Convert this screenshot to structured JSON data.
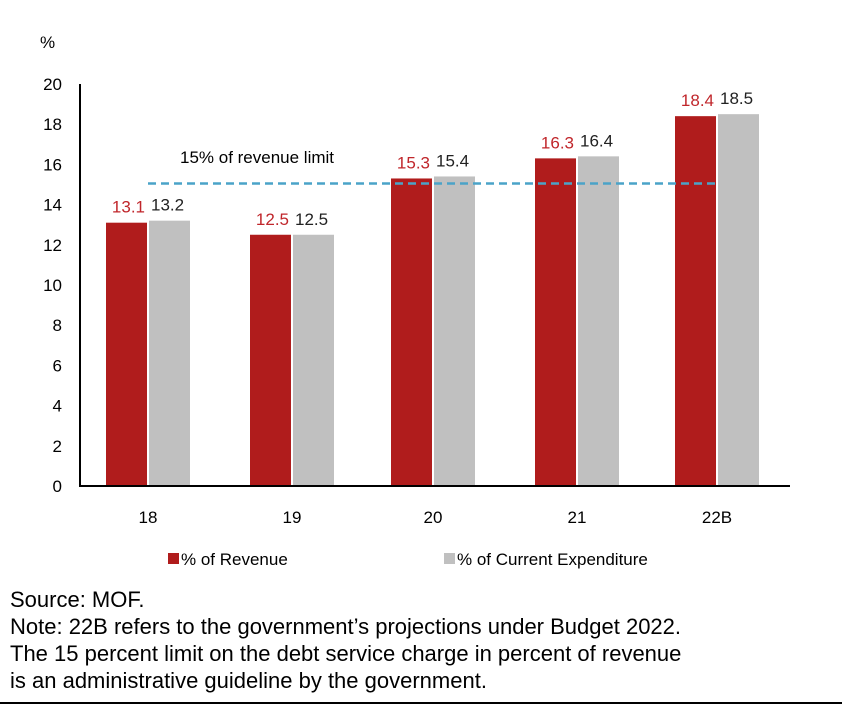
{
  "chart_data": {
    "type": "bar",
    "ylabel": "%",
    "ylim": [
      0,
      20
    ],
    "yticks": [
      0,
      2,
      4,
      6,
      8,
      10,
      12,
      14,
      16,
      18,
      20
    ],
    "categories": [
      "18",
      "19",
      "20",
      "21",
      "22B"
    ],
    "series": [
      {
        "name": "% of Revenue",
        "color": "#b01c1c",
        "label_color": "#c0262b",
        "values": [
          13.1,
          12.5,
          15.3,
          16.3,
          18.4
        ]
      },
      {
        "name": "% of Current Expenditure",
        "color": "#c0c0c0",
        "label_color": "#222222",
        "values": [
          13.2,
          12.5,
          15.4,
          16.4,
          18.5
        ]
      }
    ],
    "reference_line": {
      "value": 15,
      "label": "15% of revenue limit",
      "color": "#4aa3c8",
      "style": "dashed"
    },
    "legend_position": "bottom",
    "grid": false
  },
  "notes": {
    "source": "Source: MOF.",
    "note_lines": [
      "Note: 22B refers to the government’s projections under Budget 2022.",
      "The 15 percent limit on the debt service charge in percent of revenue",
      "is an administrative guideline by the government."
    ]
  }
}
